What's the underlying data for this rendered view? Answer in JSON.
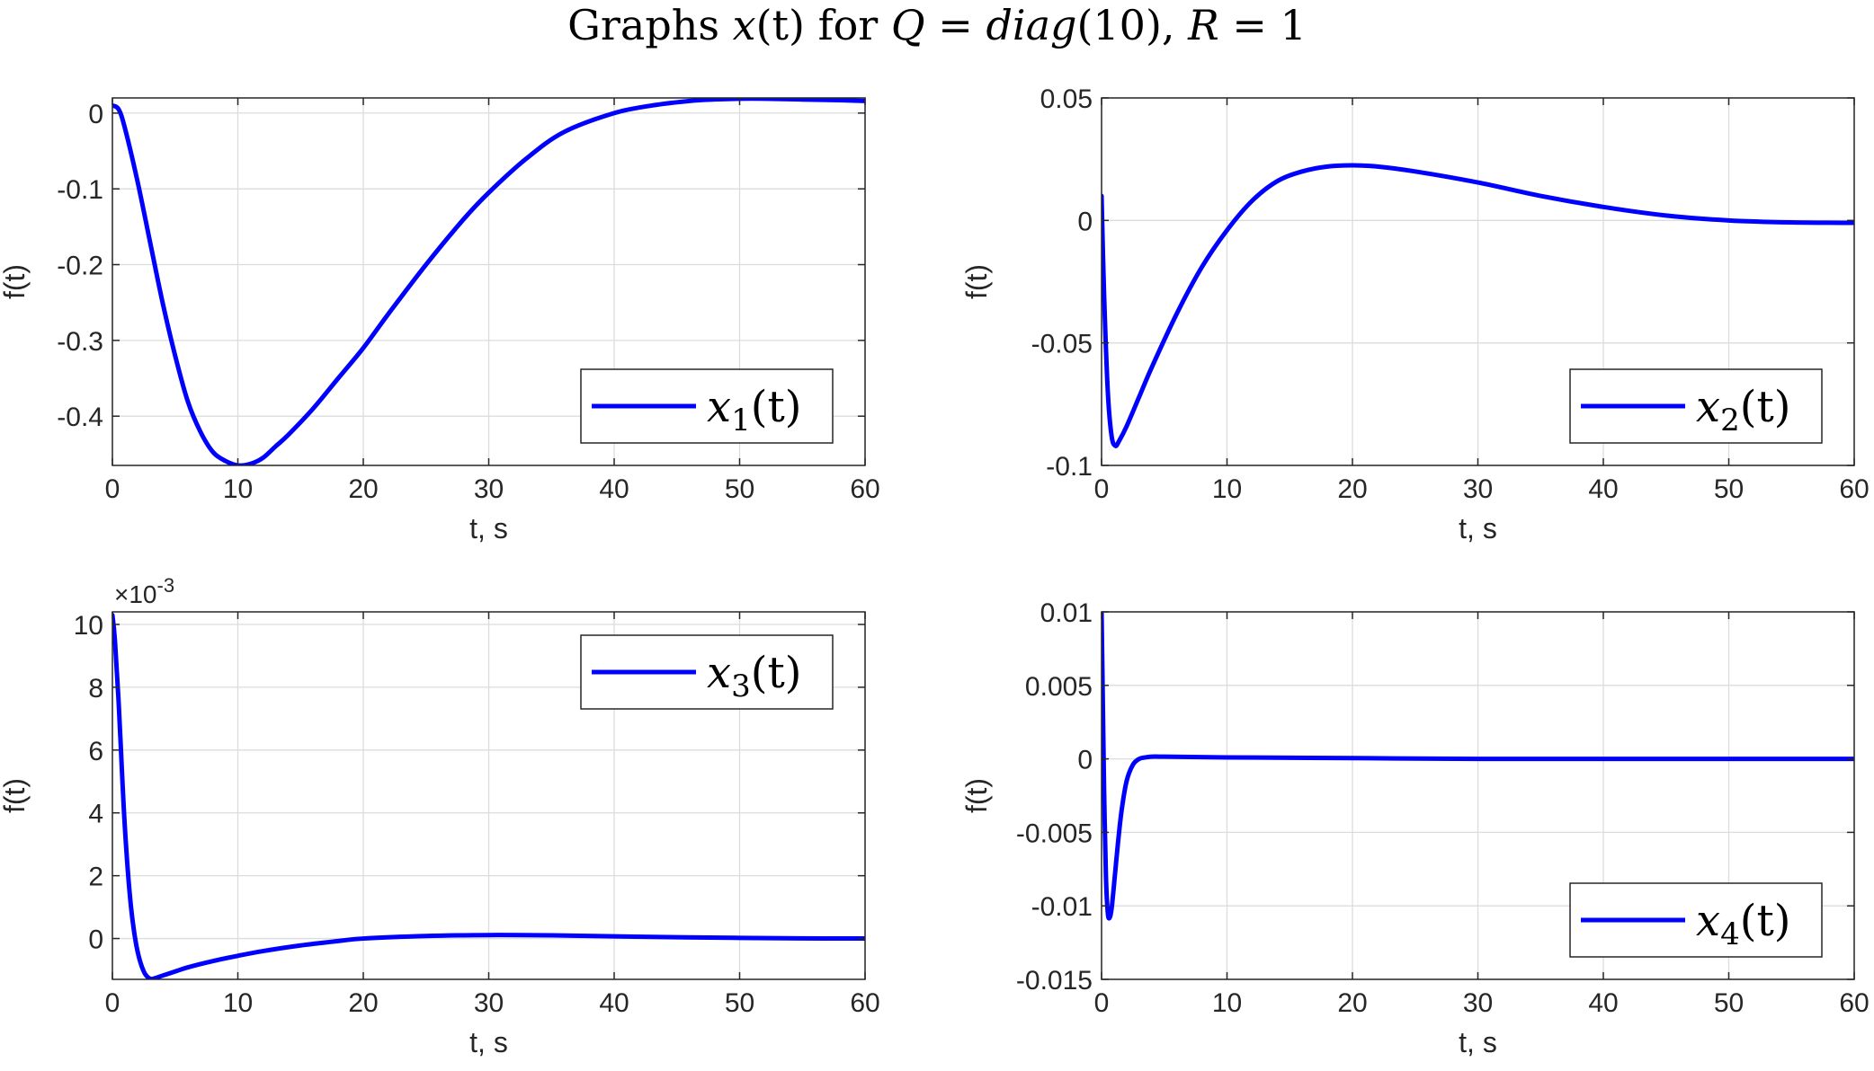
{
  "figure_title": {
    "prefix": "Graphs ",
    "var": "x",
    "arg": "(t)",
    "mid": " for ",
    "q": "Q",
    "eq1": " = ",
    "diag": "diag",
    "diag_arg": "(10), ",
    "r": "R",
    "eq2": " = 1"
  },
  "colors": {
    "line": "#0000ff",
    "grid": "#dcdcdc",
    "axis": "#262626"
  },
  "chart_data": [
    {
      "type": "line",
      "legend": {
        "var": "x",
        "sub": "1",
        "arg": "(t)",
        "position": "bottom-right"
      },
      "xlabel": "t, s",
      "ylabel": "f(t)",
      "xlim": [
        0,
        60
      ],
      "ylim": [
        -0.465,
        0.02
      ],
      "xticks": [
        0,
        10,
        20,
        30,
        40,
        50,
        60
      ],
      "yticks": [
        0,
        -0.1,
        -0.2,
        -0.3,
        -0.4
      ],
      "yticklabels": [
        "0",
        "-0.1",
        "-0.2",
        "-0.3",
        "-0.4"
      ],
      "grid": true,
      "series": [
        {
          "name": "x1(t)",
          "x": [
            0,
            0.5,
            1,
            2,
            3,
            4,
            5,
            6,
            7,
            8,
            9,
            10,
            11,
            12,
            13,
            14,
            16,
            18,
            20,
            22,
            25,
            28,
            30,
            33,
            36,
            40,
            43,
            46,
            48,
            50,
            52,
            55,
            58,
            60
          ],
          "y": [
            0.01,
            0.005,
            -0.02,
            -0.09,
            -0.17,
            -0.25,
            -0.32,
            -0.38,
            -0.42,
            -0.447,
            -0.459,
            -0.465,
            -0.463,
            -0.455,
            -0.44,
            -0.425,
            -0.39,
            -0.35,
            -0.31,
            -0.265,
            -0.2,
            -0.14,
            -0.105,
            -0.06,
            -0.025,
            0.0,
            0.01,
            0.016,
            0.018,
            0.019,
            0.019,
            0.018,
            0.017,
            0.016
          ]
        }
      ]
    },
    {
      "type": "line",
      "legend": {
        "var": "x",
        "sub": "2",
        "arg": "(t)",
        "position": "bottom-right"
      },
      "xlabel": "t, s",
      "ylabel": "f(t)",
      "xlim": [
        0,
        60
      ],
      "ylim": [
        -0.1,
        0.05
      ],
      "xticks": [
        0,
        10,
        20,
        30,
        40,
        50,
        60
      ],
      "yticks": [
        0.05,
        0,
        -0.05,
        -0.1
      ],
      "yticklabels": [
        "0.05",
        "0",
        "-0.05",
        "-0.1"
      ],
      "grid": true,
      "series": [
        {
          "name": "x2(t)",
          "x": [
            0,
            0.2,
            0.5,
            0.8,
            1.1,
            1.4,
            2,
            3,
            4,
            6,
            8,
            10,
            12,
            14,
            16,
            18,
            20,
            22,
            25,
            30,
            35,
            40,
            45,
            50,
            55,
            60
          ],
          "y": [
            0.01,
            -0.03,
            -0.07,
            -0.088,
            -0.092,
            -0.09,
            -0.084,
            -0.072,
            -0.06,
            -0.038,
            -0.019,
            -0.004,
            0.008,
            0.016,
            0.02,
            0.022,
            0.0225,
            0.022,
            0.02,
            0.0155,
            0.01,
            0.0055,
            0.002,
            0.0,
            -0.0008,
            -0.001
          ]
        }
      ]
    },
    {
      "type": "line",
      "legend": {
        "var": "x",
        "sub": "3",
        "arg": "(t)",
        "position": "top-right"
      },
      "xlabel": "t, s",
      "ylabel": "f(t)",
      "exponent_label": "×10",
      "exponent_power": "-3",
      "xlim": [
        0,
        60
      ],
      "ylim": [
        -1.3,
        10.4
      ],
      "xticks": [
        0,
        10,
        20,
        30,
        40,
        50,
        60
      ],
      "yticks": [
        10,
        8,
        6,
        4,
        2,
        0
      ],
      "yticklabels": [
        "10",
        "8",
        "6",
        "4",
        "2",
        "0"
      ],
      "grid": true,
      "series": [
        {
          "name": "x3(t)",
          "x": [
            0,
            0.2,
            0.5,
            0.8,
            1,
            1.3,
            1.6,
            2,
            2.5,
            3,
            3.5,
            4,
            5,
            6,
            8,
            10,
            12,
            15,
            18,
            20,
            25,
            30,
            35,
            40,
            45,
            50,
            55,
            60
          ],
          "y": [
            10.3,
            9.5,
            7.5,
            5,
            3.5,
            1.8,
            0.6,
            -0.4,
            -1.05,
            -1.28,
            -1.25,
            -1.18,
            -1.05,
            -0.92,
            -0.72,
            -0.55,
            -0.4,
            -0.22,
            -0.08,
            0.0,
            0.08,
            0.11,
            0.1,
            0.07,
            0.04,
            0.02,
            0.005,
            0.0
          ]
        }
      ]
    },
    {
      "type": "line",
      "legend": {
        "var": "x",
        "sub": "4",
        "arg": "(t)",
        "position": "bottom-right"
      },
      "xlabel": "t, s",
      "ylabel": "f(t)",
      "xlim": [
        0,
        60
      ],
      "ylim": [
        -0.015,
        0.01
      ],
      "xticks": [
        0,
        10,
        20,
        30,
        40,
        50,
        60
      ],
      "yticks": [
        0.01,
        0.005,
        0,
        -0.005,
        -0.01,
        -0.015
      ],
      "yticklabels": [
        "0.01",
        "0.005",
        "0",
        "-0.005",
        "-0.01",
        "-0.015"
      ],
      "grid": true,
      "series": [
        {
          "name": "x4(t)",
          "x": [
            0,
            0.1,
            0.2,
            0.35,
            0.5,
            0.65,
            0.8,
            1.0,
            1.3,
            1.6,
            2,
            2.5,
            3,
            3.5,
            4,
            5,
            10,
            20,
            30,
            40,
            50,
            60
          ],
          "y": [
            0.01,
            0.004,
            -0.002,
            -0.008,
            -0.0105,
            -0.0108,
            -0.0102,
            -0.0085,
            -0.0058,
            -0.0035,
            -0.0015,
            -0.0004,
            0.0,
            0.0001,
            0.00015,
            0.00015,
            0.0001,
            5e-05,
            0.0,
            0.0,
            0.0,
            0.0
          ]
        }
      ]
    }
  ]
}
